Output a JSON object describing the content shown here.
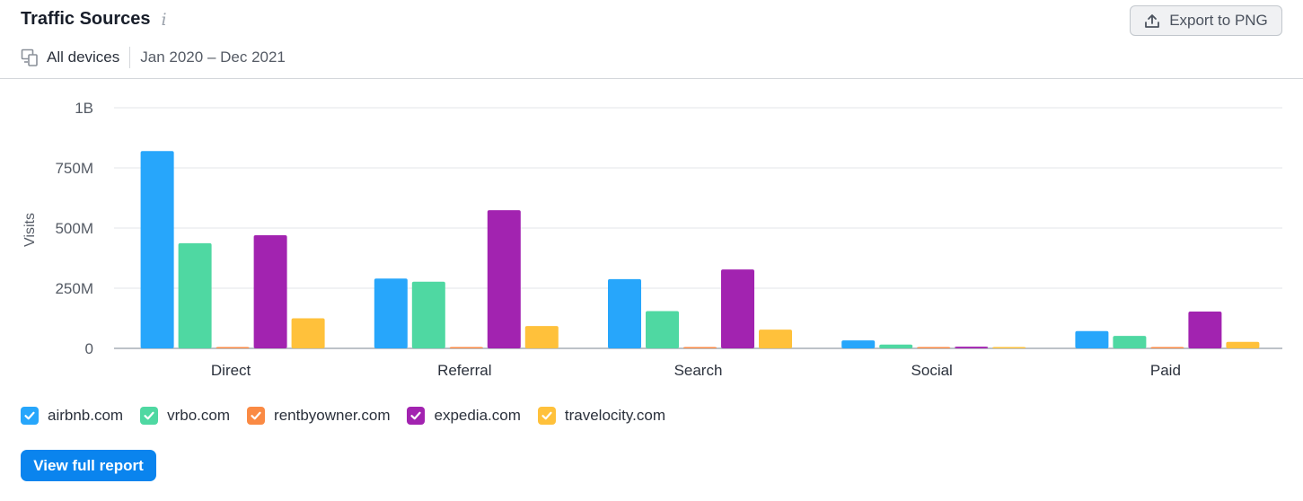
{
  "header": {
    "title": "Traffic Sources",
    "info_icon": "info-icon"
  },
  "toolbar": {
    "export_label": "Export to PNG",
    "export_icon": "upload-icon"
  },
  "filters": {
    "device_label": "All devices",
    "device_icon": "devices-icon",
    "date_range": "Jan 2020 – Dec 2021"
  },
  "legend": [
    {
      "label": "airbnb.com",
      "color": "#27a6fb",
      "checked": true
    },
    {
      "label": "vrbo.com",
      "color": "#4fd8a2",
      "checked": true
    },
    {
      "label": "rentbyowner.com",
      "color": "#fa8a44",
      "checked": true
    },
    {
      "label": "expedia.com",
      "color": "#a223b0",
      "checked": true
    },
    {
      "label": "travelocity.com",
      "color": "#ffc13b",
      "checked": true
    }
  ],
  "actions": {
    "view_report_label": "View full report"
  },
  "chart_data": {
    "type": "bar",
    "title": "",
    "xlabel": "",
    "ylabel": "Visits",
    "ylim": [
      0,
      1000000000
    ],
    "yticks": [
      {
        "value": 0,
        "label": "0"
      },
      {
        "value": 250000000,
        "label": "250M"
      },
      {
        "value": 500000000,
        "label": "500M"
      },
      {
        "value": 750000000,
        "label": "750M"
      },
      {
        "value": 1000000000,
        "label": "1B"
      }
    ],
    "grid": true,
    "legend_position": "bottom-left",
    "categories": [
      "Direct",
      "Referral",
      "Search",
      "Social",
      "Paid"
    ],
    "series": [
      {
        "name": "airbnb.com",
        "color": "#27a6fb",
        "values": [
          820000000,
          290000000,
          288000000,
          33000000,
          72000000
        ]
      },
      {
        "name": "vrbo.com",
        "color": "#4fd8a2",
        "values": [
          437000000,
          277000000,
          155000000,
          16000000,
          52000000
        ]
      },
      {
        "name": "rentbyowner.com",
        "color": "#fa8a44",
        "values": [
          3000000,
          2000000,
          2000000,
          500000,
          2000000
        ]
      },
      {
        "name": "expedia.com",
        "color": "#a223b0",
        "values": [
          470000000,
          574000000,
          328000000,
          7000000,
          153000000
        ]
      },
      {
        "name": "travelocity.com",
        "color": "#ffc13b",
        "values": [
          125000000,
          93000000,
          78000000,
          1000000,
          27000000
        ]
      }
    ]
  }
}
